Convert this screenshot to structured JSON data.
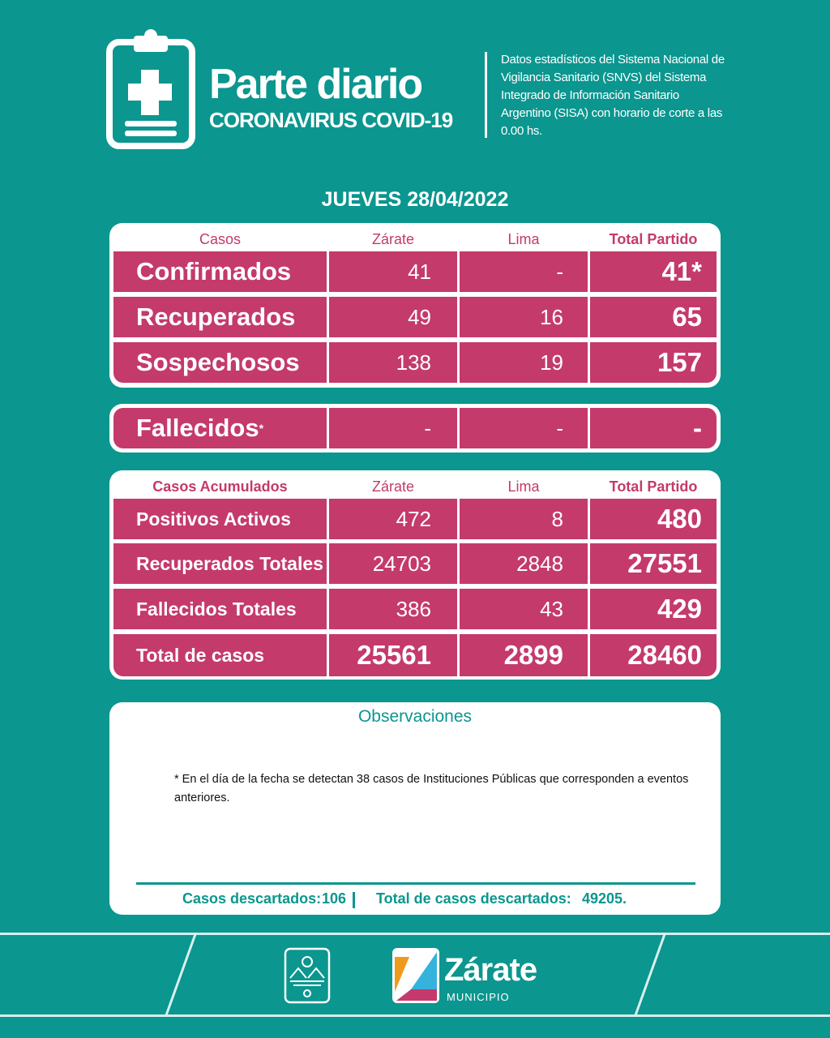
{
  "header": {
    "title": "Parte diario",
    "subtitle": "CORONAVIRUS COVID-19",
    "description": "Datos estadísticos del Sistema Nacional de Vigilancia Sanitario (SNVS) del Sistema Integrado de Información Sanitario Argentino (SISA) con horario de corte a las 0.00 hs.",
    "icon": "clipboard-plus-icon"
  },
  "date": "JUEVES 28/04/2022",
  "daily": {
    "headers": [
      "Casos",
      "Zárate",
      "Lima",
      "Total Partido"
    ],
    "rows": [
      [
        "Confirmados",
        "41",
        "-",
        "41*"
      ],
      [
        "Recuperados",
        "49",
        "16",
        "65"
      ],
      [
        "Sospechosos",
        "138",
        "19",
        "157"
      ]
    ]
  },
  "deaths": {
    "label": "Fallecidos",
    "mark": "*",
    "zarate": "-",
    "lima": "-",
    "total": "-"
  },
  "cumulative": {
    "headers": [
      "Casos Acumulados",
      "Zárate",
      "Lima",
      "Total Partido"
    ],
    "rows": [
      [
        "Positivos Activos",
        "472",
        "8",
        "480"
      ],
      [
        "Recuperados Totales",
        "24703",
        "2848",
        "27551"
      ],
      [
        "Fallecidos Totales",
        "386",
        "43",
        "429"
      ],
      [
        "Total de casos",
        "25561",
        "2899",
        "28460"
      ]
    ]
  },
  "observations": {
    "title": "Observaciones",
    "text": "* En el día de la fecha se detectan  38 casos  de Instituciones Públicas que corresponden a eventos anteriores.",
    "discarded_label": "Casos descartados:",
    "discarded": "106",
    "total_discarded_label": "Total de casos descartados:",
    "total_discarded": "49205."
  },
  "footer": {
    "logo_name": "Zárate",
    "logo_sub": "MUNICIPIO"
  },
  "colors": {
    "teal": "#0b968f",
    "pink": "#c43a6b"
  }
}
